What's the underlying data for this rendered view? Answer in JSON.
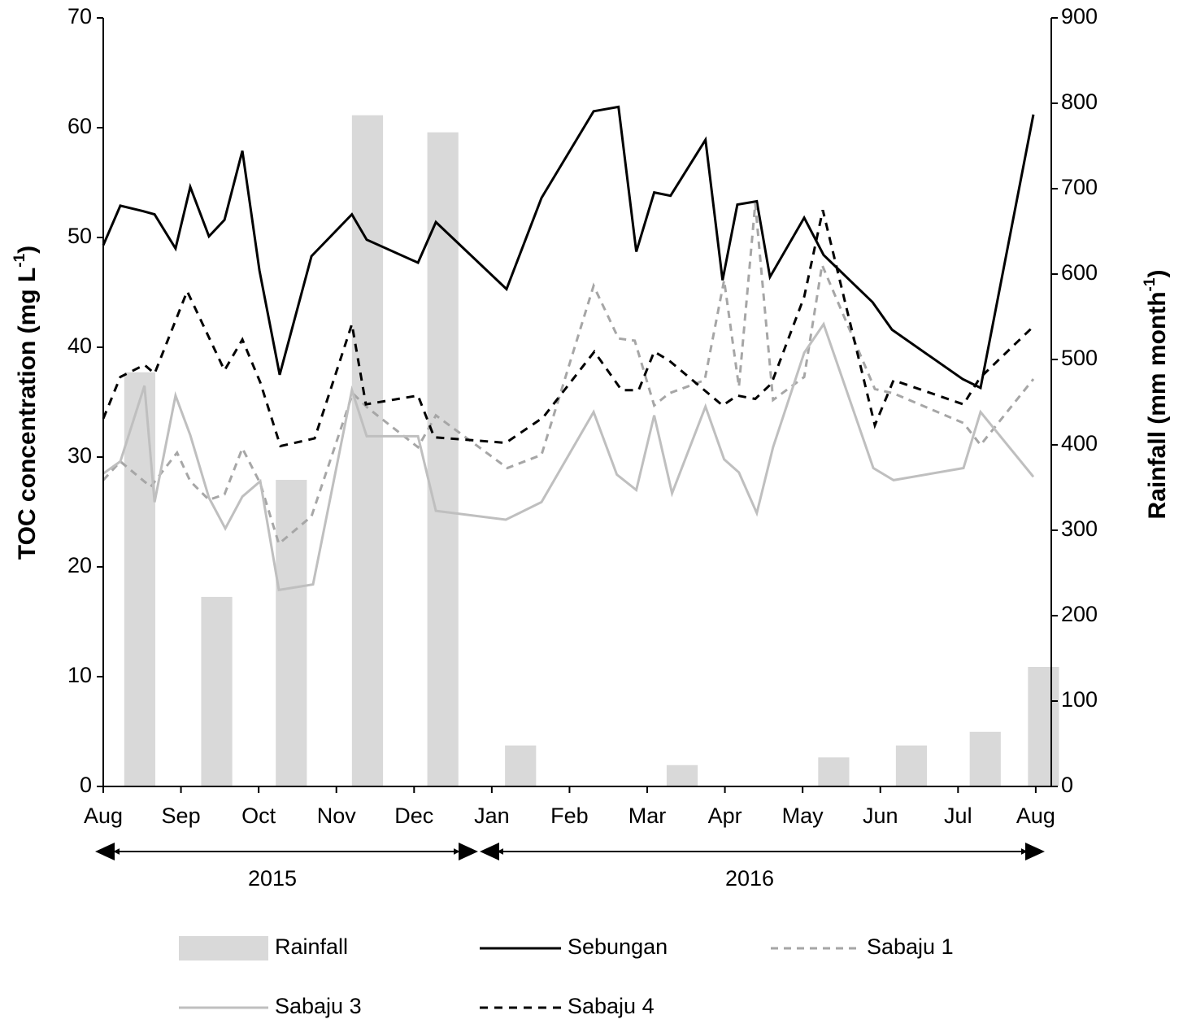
{
  "chart_data": {
    "type": "line",
    "xlim": [
      0,
      12.2
    ],
    "xticks": [
      {
        "value": 0,
        "label": "Aug"
      },
      {
        "value": 1,
        "label": "Sep"
      },
      {
        "value": 2,
        "label": "Oct"
      },
      {
        "value": 3,
        "label": "Nov"
      },
      {
        "value": 4,
        "label": "Dec"
      },
      {
        "value": 5,
        "label": "Jan"
      },
      {
        "value": 6,
        "label": "Feb"
      },
      {
        "value": 7,
        "label": "Mar"
      },
      {
        "value": 8,
        "label": "Apr"
      },
      {
        "value": 9,
        "label": "May"
      },
      {
        "value": 10,
        "label": "Jun"
      },
      {
        "value": 11,
        "label": "Jul"
      },
      {
        "value": 12,
        "label": "Aug"
      }
    ],
    "ylim": [
      0,
      70
    ],
    "yticks": [
      0,
      10,
      20,
      30,
      40,
      50,
      60,
      70
    ],
    "y2lim": [
      0,
      900
    ],
    "y2ticks": [
      0,
      100,
      200,
      300,
      400,
      500,
      600,
      700,
      800,
      900
    ],
    "y_label": {
      "text": "TOC concentration (mg L",
      "sup": "-1",
      "end": ")"
    },
    "y2_label": {
      "text": "Rainfall (mm month",
      "sup": "-1",
      "end": ")"
    },
    "annotations": [
      "2015",
      "2016"
    ],
    "series": [
      {
        "name": "Rainfall",
        "type": "bar",
        "axis": "y2",
        "color": "#d9d9d9",
        "x": [
          0.47,
          1.46,
          2.42,
          3.4,
          4.37,
          5.37,
          7.45,
          9.4,
          10.4,
          11.35,
          12.1
        ],
        "values": [
          485,
          222,
          359,
          786,
          766,
          48,
          25,
          34,
          48,
          64,
          140
        ]
      },
      {
        "name": "Sebungan",
        "type": "line",
        "color": "#000000",
        "dash": "none",
        "x": [
          0,
          0.22,
          0.51,
          0.66,
          0.93,
          1.12,
          1.36,
          1.56,
          1.79,
          2.01,
          2.27,
          2.68,
          3.2,
          3.39,
          4.05,
          4.28,
          5.19,
          5.64,
          6.31,
          6.63,
          6.86,
          7.09,
          7.3,
          7.75,
          7.97,
          8.16,
          8.41,
          8.58,
          9.02,
          9.27,
          9.9,
          10.15,
          11.06,
          11.29,
          11.97
        ],
        "values": [
          49.3,
          52.9,
          52.4,
          52.1,
          49.0,
          54.6,
          50.1,
          51.6,
          57.9,
          47.0,
          37.5,
          48.3,
          52.1,
          49.8,
          47.7,
          51.4,
          45.3,
          53.6,
          61.5,
          61.9,
          48.7,
          54.1,
          53.8,
          58.9,
          46.1,
          53.0,
          53.3,
          46.4,
          51.8,
          48.4,
          44.1,
          41.6,
          37.1,
          36.3,
          61.2
        ]
      },
      {
        "name": "Sabaju 1",
        "type": "line",
        "color": "#a6a6a6",
        "dash": "9,7",
        "x": [
          0,
          0.22,
          0.61,
          0.95,
          1.12,
          1.36,
          1.56,
          1.79,
          2.02,
          2.26,
          2.68,
          3.21,
          3.4,
          4.05,
          4.28,
          5.2,
          5.64,
          6.31,
          6.63,
          6.84,
          7.09,
          7.28,
          7.74,
          7.99,
          8.18,
          8.39,
          8.62,
          9.02,
          9.25,
          9.93,
          10.17,
          11.07,
          11.29,
          11.97
        ],
        "values": [
          27.9,
          29.6,
          27.3,
          30.4,
          27.8,
          26.1,
          26.6,
          30.8,
          27.6,
          22.1,
          24.6,
          35.8,
          34.5,
          30.9,
          33.8,
          29.0,
          30.2,
          45.6,
          40.8,
          40.6,
          34.7,
          35.8,
          37.0,
          46.1,
          36.4,
          53.1,
          35.2,
          37.3,
          47.5,
          36.2,
          35.8,
          33.1,
          31.1,
          37.1
        ]
      },
      {
        "name": "Sabaju 3",
        "type": "line",
        "color": "#bfbfbf",
        "dash": "none",
        "x": [
          0,
          0.22,
          0.53,
          0.66,
          0.93,
          1.12,
          1.36,
          1.57,
          1.79,
          2.02,
          2.26,
          2.7,
          3.2,
          3.39,
          4.05,
          4.28,
          5.18,
          5.64,
          6.31,
          6.61,
          6.86,
          7.09,
          7.32,
          7.75,
          7.99,
          8.18,
          8.41,
          8.62,
          9.02,
          9.27,
          9.91,
          10.17,
          11.07,
          11.29,
          11.97
        ],
        "values": [
          28.5,
          29.6,
          36.5,
          25.9,
          35.6,
          32.0,
          26.3,
          23.5,
          26.4,
          27.8,
          17.9,
          18.4,
          36.1,
          31.9,
          31.9,
          25.1,
          24.3,
          25.9,
          34.1,
          28.4,
          27.0,
          33.8,
          26.7,
          34.6,
          29.8,
          28.6,
          24.9,
          30.9,
          39.5,
          42.1,
          29.0,
          27.9,
          29.0,
          34.1,
          28.2
        ]
      },
      {
        "name": "Sabaju 4",
        "type": "line",
        "color": "#000000",
        "dash": "10,8",
        "x": [
          0,
          0.22,
          0.53,
          0.66,
          1.08,
          1.56,
          1.79,
          2.02,
          2.28,
          2.72,
          3.2,
          3.38,
          4.05,
          4.26,
          5.18,
          5.66,
          6.32,
          6.67,
          6.89,
          7.09,
          7.28,
          7.97,
          8.16,
          8.39,
          8.6,
          9.02,
          9.26,
          9.93,
          10.17,
          11.07,
          11.28,
          11.97
        ],
        "values": [
          33.5,
          37.3,
          38.4,
          37.6,
          45.1,
          37.9,
          40.7,
          36.8,
          31.0,
          31.7,
          42.1,
          34.8,
          35.6,
          31.8,
          31.3,
          33.6,
          39.6,
          36.1,
          36.1,
          39.6,
          38.8,
          34.7,
          35.6,
          35.3,
          36.7,
          44.6,
          52.5,
          32.9,
          37.0,
          34.8,
          37.2,
          41.9
        ]
      }
    ]
  }
}
